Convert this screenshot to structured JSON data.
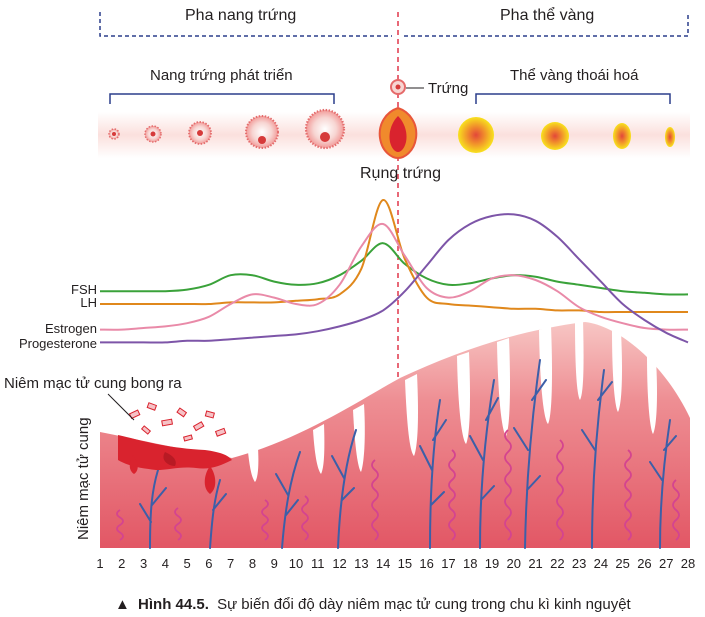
{
  "phases": {
    "follicular": "Pha nang trứng",
    "luteal": "Pha thể vàng"
  },
  "stages": {
    "follicle_growth": "Nang trứng phát triển",
    "egg": "Trứng",
    "corpus_luteum_degeneration": "Thể vàng thoái hoá",
    "ovulation": "Rụng trứng"
  },
  "hormones": {
    "fsh": "FSH",
    "lh": "LH",
    "estrogen": "Estrogen",
    "progesterone": "Progesterone"
  },
  "endometrium": {
    "shedding": "Niêm mạc tử cung bong ra",
    "axis_label": "Niêm mạc tử cung"
  },
  "days": [
    "1",
    "2",
    "3",
    "4",
    "5",
    "6",
    "7",
    "8",
    "9",
    "10",
    "11",
    "12",
    "13",
    "14",
    "15",
    "16",
    "17",
    "18",
    "19",
    "20",
    "21",
    "22",
    "23",
    "24",
    "25",
    "26",
    "27",
    "28"
  ],
  "caption": {
    "marker": "▲",
    "title": "Hình 44.5.",
    "text": "Sự biến đổi độ dày niêm mạc tử cung trong chu kì kinh nguyệt"
  },
  "colors": {
    "fsh": "#3aa23a",
    "lh": "#e0881c",
    "estrogen": "#e98aa8",
    "progesterone": "#7d55a8",
    "ovulation_line": "#e0364a",
    "phase_bracket": "#2b3f8c",
    "endometrium": "#e8707a",
    "blood": "#d9232e"
  },
  "chart_data": {
    "type": "line",
    "x": [
      1,
      2,
      3,
      4,
      5,
      6,
      7,
      8,
      9,
      10,
      11,
      12,
      13,
      14,
      15,
      16,
      17,
      18,
      19,
      20,
      21,
      22,
      23,
      24,
      25,
      26,
      27,
      28
    ],
    "series": [
      {
        "name": "FSH",
        "values": [
          0.38,
          0.38,
          0.38,
          0.38,
          0.39,
          0.42,
          0.48,
          0.48,
          0.44,
          0.42,
          0.43,
          0.48,
          0.57,
          0.68,
          0.55,
          0.46,
          0.42,
          0.43,
          0.46,
          0.48,
          0.47,
          0.44,
          0.42,
          0.4,
          0.38,
          0.37,
          0.36,
          0.36
        ]
      },
      {
        "name": "LH",
        "values": [
          0.3,
          0.3,
          0.3,
          0.3,
          0.3,
          0.3,
          0.31,
          0.31,
          0.31,
          0.32,
          0.33,
          0.36,
          0.52,
          0.95,
          0.58,
          0.34,
          0.3,
          0.29,
          0.28,
          0.27,
          0.27,
          0.26,
          0.26,
          0.25,
          0.25,
          0.25,
          0.25,
          0.25
        ]
      },
      {
        "name": "Estrogen",
        "values": [
          0.14,
          0.14,
          0.15,
          0.16,
          0.18,
          0.22,
          0.3,
          0.36,
          0.34,
          0.3,
          0.3,
          0.42,
          0.66,
          0.8,
          0.6,
          0.4,
          0.34,
          0.38,
          0.46,
          0.48,
          0.45,
          0.38,
          0.28,
          0.22,
          0.18,
          0.15,
          0.14,
          0.14
        ]
      },
      {
        "name": "Progesterone",
        "values": [
          0.06,
          0.06,
          0.06,
          0.06,
          0.07,
          0.07,
          0.08,
          0.09,
          0.1,
          0.11,
          0.13,
          0.16,
          0.2,
          0.26,
          0.38,
          0.54,
          0.7,
          0.8,
          0.85,
          0.86,
          0.82,
          0.72,
          0.58,
          0.44,
          0.3,
          0.2,
          0.12,
          0.06
        ]
      }
    ],
    "xlabel": "",
    "ylabel": ""
  }
}
